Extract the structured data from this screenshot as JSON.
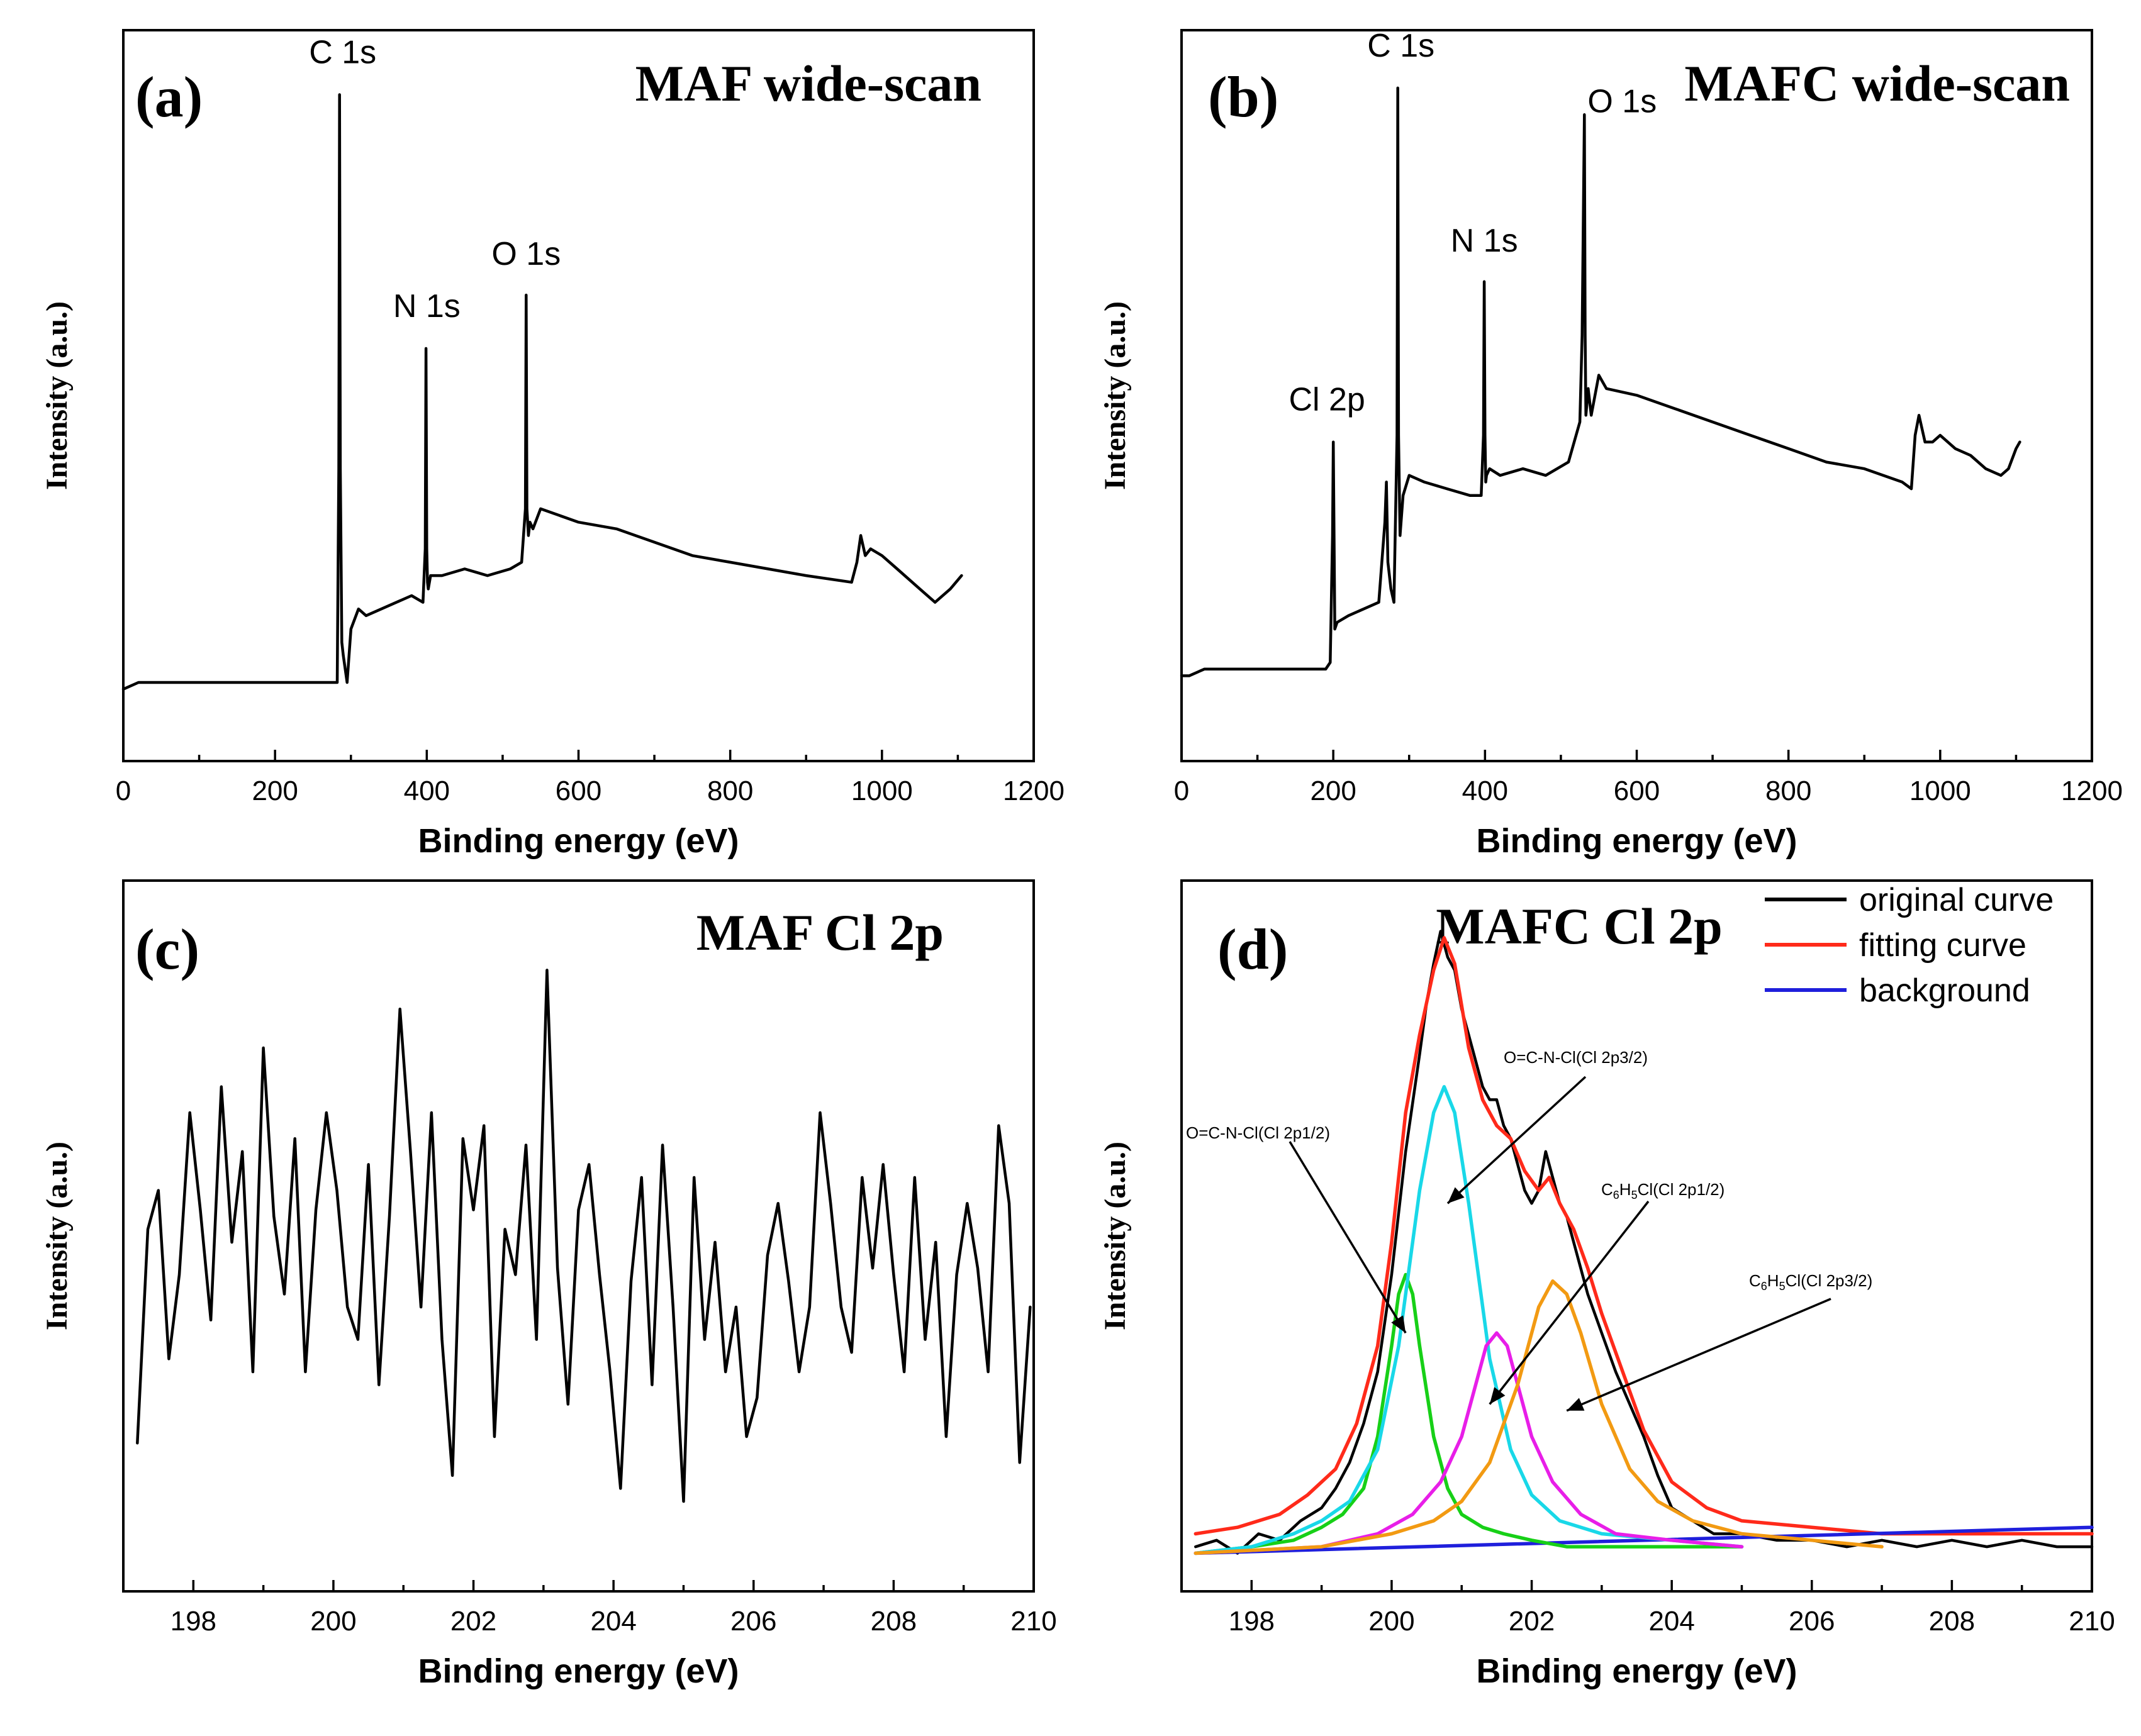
{
  "chart_data": [
    {
      "id": "a",
      "type": "line",
      "panel_label": "(a)",
      "title": "MAF wide-scan",
      "xlabel": "Binding energy (eV)",
      "ylabel": "Intensity (a.u.)",
      "xlim": [
        0,
        1200
      ],
      "ylim": [
        0,
        100
      ],
      "xticks": [
        0,
        200,
        400,
        600,
        800,
        1000,
        1200
      ],
      "xtick_labels": [
        "0",
        "200",
        "400",
        "600",
        "800",
        "1000",
        "1200"
      ],
      "minor_ticks": true,
      "series": [
        {
          "name": "MAF wide-scan",
          "color": "#000000",
          "x": [
            0,
            20,
            100,
            200,
            270,
            282,
            284,
            285,
            286,
            288,
            290,
            295,
            300,
            310,
            320,
            340,
            360,
            380,
            395,
            398,
            399,
            400,
            401,
            402,
            405,
            420,
            450,
            480,
            510,
            525,
            530,
            531,
            532,
            534,
            536,
            540,
            550,
            600,
            650,
            700,
            750,
            800,
            850,
            900,
            960,
            967,
            972,
            978,
            985,
            1000,
            1020,
            1050,
            1070,
            1090,
            1105
          ],
          "y": [
            7,
            8,
            8,
            8,
            8,
            8,
            40,
            96,
            40,
            14,
            12,
            8,
            16,
            19,
            18,
            19,
            20,
            21,
            20,
            28,
            58,
            28,
            23,
            22,
            24,
            24,
            25,
            24,
            25,
            26,
            34,
            66,
            34,
            30,
            32,
            31,
            34,
            32,
            31,
            29,
            27,
            26,
            25,
            24,
            23,
            26,
            30,
            27,
            28,
            27,
            25,
            22,
            20,
            22,
            24
          ]
        }
      ],
      "annotations": [
        {
          "text": "C 1s",
          "x": 285,
          "y": 96
        },
        {
          "text": "N 1s",
          "x": 400,
          "y": 58
        },
        {
          "text": "O 1s",
          "x": 531,
          "y": 66
        }
      ]
    },
    {
      "id": "b",
      "type": "line",
      "panel_label": "(b)",
      "title": "MAFC wide-scan",
      "xlabel": "Binding energy (eV)",
      "ylabel": "Intensity (a.u.)",
      "xlim": [
        0,
        1200
      ],
      "ylim": [
        0,
        100
      ],
      "xticks": [
        0,
        200,
        400,
        600,
        800,
        1000,
        1200
      ],
      "xtick_labels": [
        "0",
        "200",
        "400",
        "600",
        "800",
        "1000",
        "1200"
      ],
      "minor_ticks": true,
      "series": [
        {
          "name": "MAFC wide-scan",
          "color": "#000000",
          "x": [
            0,
            10,
            30,
            100,
            190,
            196,
            199,
            200,
            201,
            202,
            205,
            220,
            240,
            260,
            268,
            270,
            272,
            276,
            280,
            284,
            285,
            286,
            288,
            292,
            300,
            320,
            350,
            380,
            395,
            398,
            399,
            400,
            401,
            402,
            406,
            420,
            450,
            480,
            510,
            525,
            528,
            531,
            532,
            533,
            536,
            540,
            550,
            560,
            600,
            650,
            700,
            750,
            800,
            850,
            900,
            950,
            962,
            967,
            972,
            980,
            990,
            1000,
            1020,
            1040,
            1060,
            1080,
            1090,
            1100,
            1105
          ],
          "y": [
            9,
            9,
            10,
            10,
            10,
            11,
            30,
            44,
            30,
            16,
            17,
            18,
            19,
            20,
            32,
            38,
            26,
            22,
            20,
            45,
            97,
            45,
            30,
            36,
            39,
            38,
            37,
            36,
            36,
            45,
            68,
            45,
            38,
            39,
            40,
            39,
            40,
            39,
            41,
            47,
            60,
            93,
            60,
            48,
            52,
            48,
            54,
            52,
            51,
            49,
            47,
            45,
            43,
            41,
            40,
            38,
            37,
            45,
            48,
            44,
            44,
            45,
            43,
            42,
            40,
            39,
            40,
            43,
            44
          ]
        }
      ],
      "annotations": [
        {
          "text": "Cl 2p",
          "x": 200,
          "y": 44
        },
        {
          "text": "C 1s",
          "x": 285,
          "y": 97
        },
        {
          "text": "N 1s",
          "x": 399,
          "y": 68
        },
        {
          "text": "O 1s",
          "x": 531,
          "y": 93
        }
      ]
    },
    {
      "id": "c",
      "type": "line",
      "panel_label": "(c)",
      "title": "MAF Cl 2p",
      "xlabel": "Binding energy (eV)",
      "ylabel": "Intensity (a.u.)",
      "xlim": [
        197,
        210
      ],
      "ylim": [
        0,
        100
      ],
      "xticks": [
        198,
        200,
        202,
        204,
        206,
        208,
        210
      ],
      "xtick_labels": [
        "198",
        "200",
        "202",
        "204",
        "206",
        "208",
        "210"
      ],
      "minor_ticks": true,
      "series": [
        {
          "name": "MAF Cl 2p",
          "color": "#000000",
          "x": [
            197.2,
            197.35,
            197.5,
            197.65,
            197.8,
            197.95,
            198.1,
            198.25,
            198.4,
            198.55,
            198.7,
            198.85,
            199.0,
            199.15,
            199.3,
            199.45,
            199.6,
            199.75,
            199.9,
            200.05,
            200.2,
            200.35,
            200.5,
            200.65,
            200.8,
            200.95,
            201.1,
            201.25,
            201.4,
            201.55,
            201.7,
            201.85,
            202.0,
            202.15,
            202.3,
            202.45,
            202.6,
            202.75,
            202.9,
            203.05,
            203.2,
            203.35,
            203.5,
            203.65,
            203.8,
            203.95,
            204.1,
            204.25,
            204.4,
            204.55,
            204.7,
            204.85,
            205.0,
            205.15,
            205.3,
            205.45,
            205.6,
            205.75,
            205.9,
            206.05,
            206.2,
            206.35,
            206.5,
            206.65,
            206.8,
            206.95,
            207.1,
            207.25,
            207.4,
            207.55,
            207.7,
            207.85,
            208.0,
            208.15,
            208.3,
            208.45,
            208.6,
            208.75,
            208.9,
            209.05,
            209.2,
            209.35,
            209.5,
            209.65,
            209.8,
            209.95
          ],
          "y": [
            19,
            52,
            58,
            32,
            45,
            70,
            55,
            38,
            74,
            50,
            64,
            30,
            80,
            54,
            42,
            66,
            30,
            55,
            70,
            58,
            40,
            35,
            62,
            28,
            54,
            86,
            64,
            40,
            70,
            35,
            14,
            66,
            55,
            68,
            20,
            52,
            45,
            65,
            35,
            92,
            46,
            25,
            55,
            62,
            45,
            30,
            12,
            44,
            60,
            28,
            65,
            40,
            10,
            60,
            35,
            50,
            30,
            40,
            20,
            26,
            48,
            56,
            44,
            30,
            40,
            70,
            56,
            40,
            33,
            60,
            46,
            62,
            45,
            30,
            60,
            35,
            50,
            20,
            45,
            56,
            46,
            30,
            68,
            56,
            16,
            40
          ]
        }
      ]
    },
    {
      "id": "d",
      "type": "line",
      "panel_label": "(d)",
      "title": "MAFC Cl 2p",
      "xlabel": "Binding energy (eV)",
      "ylabel": "Intensity (a.u.)",
      "xlim": [
        197,
        210
      ],
      "ylim": [
        0,
        100
      ],
      "xticks": [
        198,
        200,
        202,
        204,
        206,
        208,
        210
      ],
      "xtick_labels": [
        "198",
        "200",
        "202",
        "204",
        "206",
        "208",
        "210"
      ],
      "minor_ticks": true,
      "legend": {
        "position": "top-right",
        "entries": [
          {
            "label": "original curve",
            "color": "#000000"
          },
          {
            "label": "fitting curve",
            "color": "#ff2a1a"
          },
          {
            "label": "background",
            "color": "#1f1fdc"
          }
        ]
      },
      "series": [
        {
          "name": "original curve",
          "color": "#000000",
          "x": [
            197.2,
            197.5,
            197.8,
            198.1,
            198.4,
            198.7,
            199.0,
            199.2,
            199.4,
            199.6,
            199.8,
            200.0,
            200.2,
            200.4,
            200.5,
            200.6,
            200.7,
            200.8,
            200.9,
            201.0,
            201.1,
            201.2,
            201.3,
            201.4,
            201.5,
            201.6,
            201.7,
            201.8,
            201.9,
            202.0,
            202.1,
            202.2,
            202.3,
            202.4,
            202.5,
            202.6,
            202.8,
            203.0,
            203.2,
            203.4,
            203.6,
            203.8,
            204.0,
            204.3,
            204.6,
            205.0,
            205.5,
            206.0,
            206.5,
            207.0,
            207.5,
            208.0,
            208.5,
            209.0,
            209.5,
            210.0
          ],
          "y": [
            3,
            4,
            2,
            5,
            4,
            7,
            9,
            12,
            16,
            22,
            30,
            45,
            64,
            79,
            87,
            93,
            98,
            94,
            92,
            86,
            82,
            78,
            74,
            72,
            72,
            68,
            66,
            62,
            58,
            56,
            58,
            64,
            60,
            56,
            54,
            50,
            42,
            36,
            30,
            25,
            20,
            14,
            9,
            7,
            5,
            5,
            4,
            4,
            3,
            4,
            3,
            4,
            3,
            4,
            3,
            3
          ]
        },
        {
          "name": "fitting curve",
          "color": "#ff2a1a",
          "x": [
            197.2,
            197.8,
            198.4,
            198.8,
            199.2,
            199.5,
            199.8,
            200.0,
            200.2,
            200.4,
            200.6,
            200.75,
            200.9,
            201.1,
            201.3,
            201.5,
            201.7,
            201.9,
            202.1,
            202.25,
            202.4,
            202.6,
            202.8,
            203.0,
            203.3,
            203.6,
            204.0,
            204.5,
            205.0,
            206.0,
            207.0,
            208.0,
            209.0,
            210.0
          ],
          "y": [
            5,
            6,
            8,
            11,
            15,
            22,
            34,
            50,
            70,
            82,
            92,
            97,
            93,
            80,
            72,
            68,
            66,
            61,
            58,
            60,
            56,
            52,
            46,
            39,
            30,
            21,
            13,
            9,
            7,
            6,
            5,
            5,
            5,
            5
          ]
        },
        {
          "name": "background",
          "color": "#1f1fdc",
          "x": [
            197.2,
            210.0
          ],
          "y": [
            2,
            6
          ]
        },
        {
          "name": "O=C-N-Cl(Cl 2p1/2)",
          "color": "#17d017",
          "x": [
            197.2,
            198.0,
            198.6,
            199.0,
            199.3,
            199.6,
            199.8,
            200.0,
            200.1,
            200.2,
            200.3,
            200.4,
            200.6,
            200.8,
            201.0,
            201.3,
            201.6,
            202.0,
            202.5,
            203.0,
            204.0,
            205.0
          ],
          "y": [
            2,
            3,
            4,
            6,
            8,
            12,
            20,
            34,
            42,
            45,
            42,
            34,
            20,
            12,
            8,
            6,
            5,
            4,
            3,
            3,
            3,
            3
          ]
        },
        {
          "name": "O=C-N-Cl(Cl 2p3/2)",
          "color": "#19d8e8",
          "x": [
            197.2,
            198.0,
            198.6,
            199.0,
            199.4,
            199.8,
            200.1,
            200.4,
            200.6,
            200.75,
            200.9,
            201.1,
            201.4,
            201.7,
            202.0,
            202.4,
            203.0,
            204.0,
            205.0
          ],
          "y": [
            2,
            3,
            5,
            7,
            10,
            18,
            34,
            58,
            70,
            74,
            70,
            56,
            32,
            18,
            11,
            7,
            5,
            4,
            3
          ]
        },
        {
          "name": "C6H5Cl(Cl 2p1/2)",
          "color": "#e81ee8",
          "x": [
            197.2,
            199.0,
            199.8,
            200.3,
            200.7,
            201.0,
            201.2,
            201.35,
            201.5,
            201.65,
            201.8,
            202.0,
            202.3,
            202.7,
            203.2,
            204.0,
            205.0
          ],
          "y": [
            2,
            3,
            5,
            8,
            13,
            20,
            28,
            34,
            36,
            34,
            28,
            20,
            13,
            8,
            5,
            4,
            3
          ]
        },
        {
          "name": "C6H5Cl(Cl 2p3/2)",
          "color": "#f29a12",
          "x": [
            197.2,
            199.0,
            200.0,
            200.6,
            201.0,
            201.4,
            201.8,
            202.1,
            202.3,
            202.5,
            202.7,
            203.0,
            203.4,
            203.8,
            204.3,
            205.0,
            206.0,
            207.0
          ],
          "y": [
            2,
            3,
            5,
            7,
            10,
            16,
            28,
            40,
            44,
            42,
            36,
            25,
            15,
            10,
            7,
            5,
            4,
            3
          ]
        }
      ],
      "component_labels": [
        {
          "text": "O=C-N-Cl(Cl 2p1/2)",
          "points_to": [
            200.2,
            36
          ]
        },
        {
          "text": "O=C-N-Cl(Cl 2p3/2)",
          "points_to": [
            200.8,
            56
          ]
        },
        {
          "text": "C6H5Cl(Cl 2p1/2)",
          "points_to": [
            201.4,
            25
          ]
        },
        {
          "text": "C6H5Cl(Cl 2p3/2)",
          "points_to": [
            202.5,
            24
          ]
        }
      ]
    }
  ]
}
